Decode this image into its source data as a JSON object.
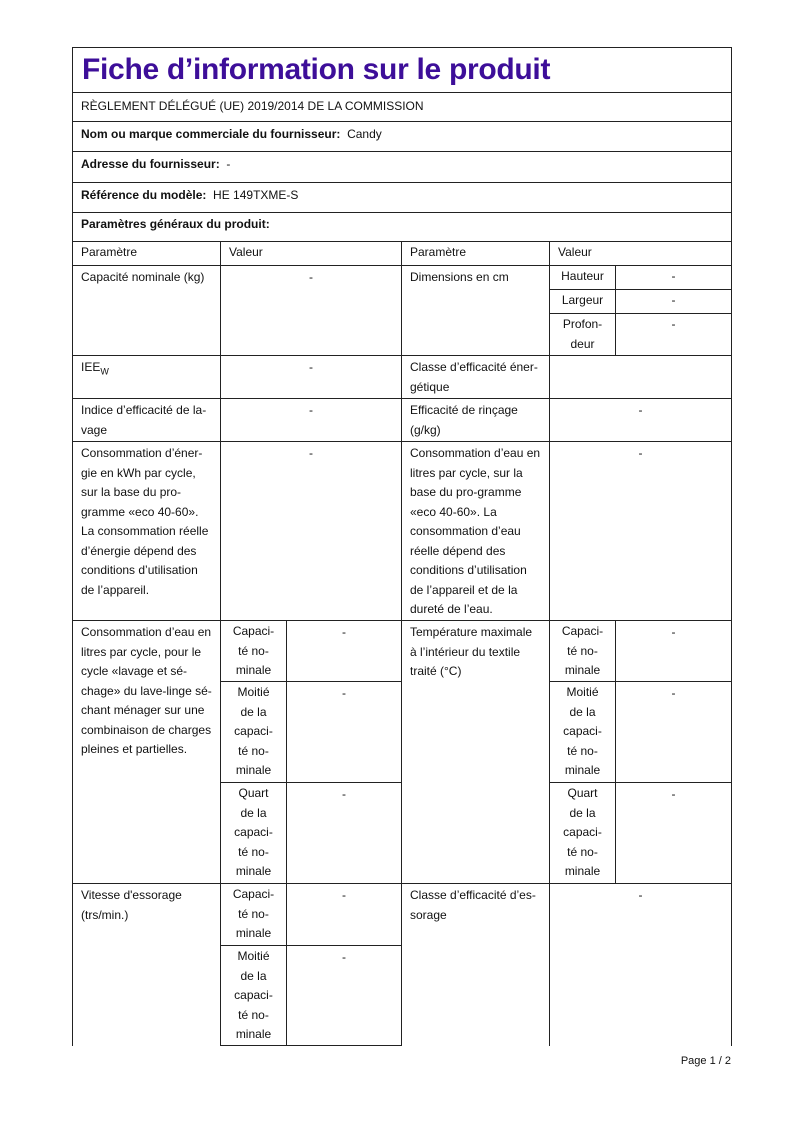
{
  "title": "Fiche d’information sur le produit",
  "regulation": "RÈGLEMENT DÉLÉGUÉ (UE) 2019/2014 DE LA COMMISSION",
  "supplier": {
    "label": "Nom ou marque commerciale du fournisseur:",
    "value": "Candy"
  },
  "address": {
    "label": "Adresse du fournisseur:",
    "value": "-"
  },
  "model": {
    "label": "Référence du modèle:",
    "value": "HE 149TXME-S"
  },
  "general": "Paramètres généraux du produit:",
  "headers": {
    "param": "Paramètre",
    "value": "Valeur"
  },
  "rows": {
    "capacity": {
      "label": "Capacité nominale (kg)",
      "value": "-"
    },
    "dimensions": {
      "label": "Dimensions en cm",
      "height": "Hauteur",
      "height_v": "-",
      "width": "Largeur",
      "width_v": "-",
      "depth": "Profon-deur",
      "depth_v": "-"
    },
    "ieew": {
      "label": "IEE",
      "sub": "W",
      "value": "-"
    },
    "energy_class": {
      "label": "Classe d’efficacité éner-gétique",
      "value": ""
    },
    "wash_index": {
      "label": "Indice d’efficacité de la-vage",
      "value": "-"
    },
    "rinse": {
      "label": "Efficacité de rinçage (g/kg)",
      "value": "-"
    },
    "energy": {
      "label": "Consommation d’éner-gie en kWh par cycle, sur la base du pro-gramme «eco 40-60». La consommation réelle d’énergie dépend des conditions d’utilisation de l’appareil.",
      "value": "-"
    },
    "water": {
      "label": "Consommation d’eau en litres par cycle, sur la base du pro-gramme «eco 40-60». La consommation d’eau réelle dépend des conditions d’utilisation de l’appareil et de la dureté de l’eau.",
      "value": "-"
    },
    "water_dry": {
      "label": "Consommation d’eau en litres par cycle, pour le cycle «lavage et sé-chage» du lave-linge sé-chant ménager sur une combinaison de charges pleines et partielles.",
      "full": "Capaci-té no-minale",
      "full_v": "-",
      "half": "Moitié de la capaci-té no-minale",
      "half_v": "-",
      "quarter": "Quart de la capaci-té no-minale",
      "quarter_v": "-"
    },
    "temp": {
      "label": "Température maximale à l’intérieur du textile traité (°C)",
      "full": "Capaci-té no-minale",
      "full_v": "-",
      "half": "Moitié de la capaci-té no-minale",
      "half_v": "-",
      "quarter": "Quart de la capaci-té no-minale",
      "quarter_v": "-"
    },
    "spin": {
      "label": "Vitesse d'essorage (trs/min.)",
      "full": "Capaci-té no-minale",
      "full_v": "-",
      "half": "Moitié de la capaci-té no-minale",
      "half_v": "-"
    },
    "spin_class": {
      "label": "Classe d’efficacité d’es-sorage",
      "value": "-"
    }
  },
  "footer": "Page 1 / 2"
}
